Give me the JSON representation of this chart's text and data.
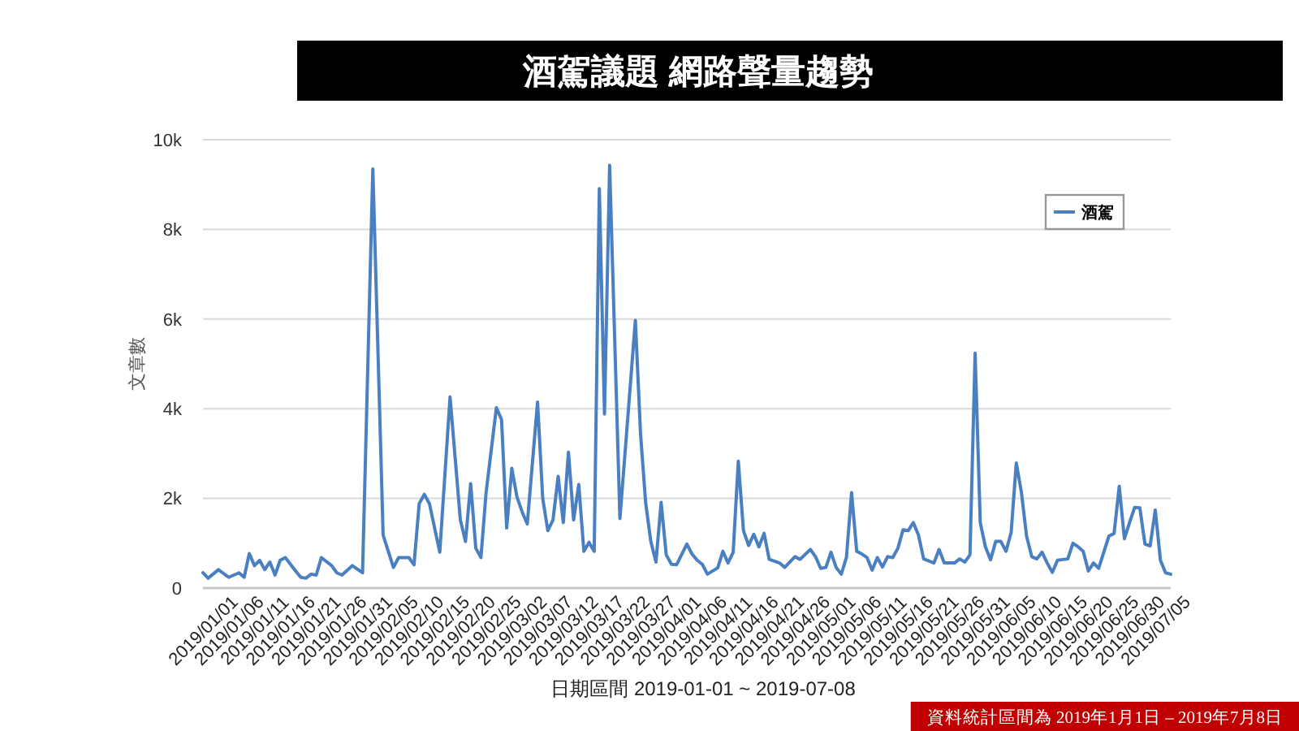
{
  "chart_data": {
    "type": "line",
    "title": "酒駕議題 網路聲量趨勢",
    "xlabel": "日期區間 2019-01-01 ~ 2019-07-08",
    "ylabel": "文章數",
    "annotations": [
      "資料統計區間為 2019年1月1日 – 2019年7月8日"
    ],
    "x": [
      "2019-01-01",
      "2019-01-02",
      "2019-01-04",
      "2019-01-06",
      "2019-01-08",
      "2019-01-09",
      "2019-01-10",
      "2019-01-11",
      "2019-01-12",
      "2019-01-13",
      "2019-01-14",
      "2019-01-15",
      "2019-01-16",
      "2019-01-17",
      "2019-01-19",
      "2019-01-20",
      "2019-01-21",
      "2019-01-22",
      "2019-01-23",
      "2019-01-24",
      "2019-01-26",
      "2019-01-27",
      "2019-01-28",
      "2019-01-30",
      "2019-02-01",
      "2019-02-03",
      "2019-02-05",
      "2019-02-07",
      "2019-02-08",
      "2019-02-10",
      "2019-02-11",
      "2019-02-12",
      "2019-02-13",
      "2019-02-14",
      "2019-02-16",
      "2019-02-18",
      "2019-02-20",
      "2019-02-21",
      "2019-02-22",
      "2019-02-23",
      "2019-02-24",
      "2019-02-25",
      "2019-02-27",
      "2019-02-28",
      "2019-03-01",
      "2019-03-02",
      "2019-03-03",
      "2019-03-04",
      "2019-03-05",
      "2019-03-07",
      "2019-03-08",
      "2019-03-09",
      "2019-03-10",
      "2019-03-11",
      "2019-03-12",
      "2019-03-13",
      "2019-03-14",
      "2019-03-15",
      "2019-03-16",
      "2019-03-17",
      "2019-03-18",
      "2019-03-19",
      "2019-03-20",
      "2019-03-21",
      "2019-03-23",
      "2019-03-26",
      "2019-03-27",
      "2019-03-28",
      "2019-03-29",
      "2019-03-30",
      "2019-03-31",
      "2019-04-01",
      "2019-04-02",
      "2019-04-03",
      "2019-04-05",
      "2019-04-06",
      "2019-04-07",
      "2019-04-08",
      "2019-04-09",
      "2019-04-11",
      "2019-04-12",
      "2019-04-13",
      "2019-04-14",
      "2019-04-15",
      "2019-04-16",
      "2019-04-17",
      "2019-04-18",
      "2019-04-19",
      "2019-04-20",
      "2019-04-21",
      "2019-04-23",
      "2019-04-24",
      "2019-04-26",
      "2019-04-27",
      "2019-04-29",
      "2019-04-30",
      "2019-05-01",
      "2019-05-02",
      "2019-05-03",
      "2019-05-04",
      "2019-05-05",
      "2019-05-06",
      "2019-05-07",
      "2019-05-08",
      "2019-05-09",
      "2019-05-10",
      "2019-05-11",
      "2019-05-12",
      "2019-05-13",
      "2019-05-14",
      "2019-05-15",
      "2019-05-16",
      "2019-05-17",
      "2019-05-18",
      "2019-05-19",
      "2019-05-20",
      "2019-05-21",
      "2019-05-23",
      "2019-05-24",
      "2019-05-25",
      "2019-05-27",
      "2019-05-28",
      "2019-05-29",
      "2019-05-30",
      "2019-05-31",
      "2019-06-01",
      "2019-06-02",
      "2019-06-03",
      "2019-06-04",
      "2019-06-05",
      "2019-06-06",
      "2019-06-07",
      "2019-06-08",
      "2019-06-09",
      "2019-06-10",
      "2019-06-11",
      "2019-06-12",
      "2019-06-13",
      "2019-06-14",
      "2019-06-15",
      "2019-06-16",
      "2019-06-18",
      "2019-06-19",
      "2019-06-20",
      "2019-06-21",
      "2019-06-22",
      "2019-06-23",
      "2019-06-24",
      "2019-06-25",
      "2019-06-26",
      "2019-06-27",
      "2019-06-28",
      "2019-06-29",
      "2019-06-30",
      "2019-07-01",
      "2019-07-02",
      "2019-07-03",
      "2019-07-04",
      "2019-07-05",
      "2019-07-06",
      "2019-07-07",
      "2019-07-08"
    ],
    "series": [
      {
        "name": "酒駕",
        "color": "#4a7fc1",
        "values": [
          340,
          220,
          410,
          240,
          340,
          240,
          770,
          500,
          620,
          410,
          580,
          290,
          620,
          680,
          380,
          240,
          220,
          310,
          290,
          680,
          500,
          340,
          290,
          500,
          340,
          9350,
          1180,
          460,
          680,
          680,
          520,
          1880,
          2090,
          1880,
          800,
          4260,
          1520,
          1040,
          2330,
          890,
          680,
          2130,
          4020,
          3760,
          1340,
          2670,
          2030,
          1700,
          1430,
          4150,
          2000,
          1280,
          1520,
          2490,
          1460,
          3030,
          1520,
          2310,
          820,
          1020,
          820,
          8910,
          3880,
          9430,
          1550,
          5970,
          3450,
          1900,
          1040,
          580,
          1910,
          740,
          530,
          520,
          980,
          760,
          620,
          530,
          310,
          450,
          820,
          560,
          800,
          2830,
          1280,
          950,
          1200,
          920,
          1220,
          640,
          560,
          460,
          700,
          640,
          860,
          700,
          440,
          460,
          800,
          460,
          310,
          680,
          2130,
          820,
          760,
          680,
          400,
          680,
          470,
          700,
          680,
          890,
          1300,
          1280,
          1460,
          1180,
          650,
          560,
          860,
          560,
          560,
          650,
          580,
          740,
          5240,
          1460,
          920,
          630,
          1040,
          1040,
          820,
          1240,
          2790,
          2130,
          1160,
          700,
          650,
          800,
          560,
          350,
          620,
          650,
          1000,
          920,
          820,
          380,
          560,
          440,
          800,
          1160,
          1220,
          2270,
          1100,
          1460,
          1800,
          1790,
          980,
          940,
          1740,
          620,
          340,
          310
        ]
      }
    ],
    "xlim": [
      "2019-01-01",
      "2019-07-08"
    ],
    "xticks": [
      {
        "value": "2019-01-01",
        "label": "2019/01/01"
      },
      {
        "value": "2019-01-06",
        "label": "2019/01/06"
      },
      {
        "value": "2019-01-11",
        "label": "2019/01/11"
      },
      {
        "value": "2019-01-16",
        "label": "2019/01/16"
      },
      {
        "value": "2019-01-21",
        "label": "2019/01/21"
      },
      {
        "value": "2019-01-26",
        "label": "2019/01/26"
      },
      {
        "value": "2019-01-31",
        "label": "2019/01/31"
      },
      {
        "value": "2019-02-05",
        "label": "2019/02/05"
      },
      {
        "value": "2019-02-10",
        "label": "2019/02/10"
      },
      {
        "value": "2019-02-15",
        "label": "2019/02/15"
      },
      {
        "value": "2019-02-20",
        "label": "2019/02/20"
      },
      {
        "value": "2019-02-25",
        "label": "2019/02/25"
      },
      {
        "value": "2019-03-02",
        "label": "2019/03/02"
      },
      {
        "value": "2019-03-07",
        "label": "2019/03/07"
      },
      {
        "value": "2019-03-12",
        "label": "2019/03/12"
      },
      {
        "value": "2019-03-17",
        "label": "2019/03/17"
      },
      {
        "value": "2019-03-22",
        "label": "2019/03/22"
      },
      {
        "value": "2019-03-27",
        "label": "2019/03/27"
      },
      {
        "value": "2019-04-01",
        "label": "2019/04/01"
      },
      {
        "value": "2019-04-06",
        "label": "2019/04/06"
      },
      {
        "value": "2019-04-11",
        "label": "2019/04/11"
      },
      {
        "value": "2019-04-16",
        "label": "2019/04/16"
      },
      {
        "value": "2019-04-21",
        "label": "2019/04/21"
      },
      {
        "value": "2019-04-26",
        "label": "2019/04/26"
      },
      {
        "value": "2019-05-01",
        "label": "2019/05/01"
      },
      {
        "value": "2019-05-06",
        "label": "2019/05/06"
      },
      {
        "value": "2019-05-11",
        "label": "2019/05/11"
      },
      {
        "value": "2019-05-16",
        "label": "2019/05/16"
      },
      {
        "value": "2019-05-21",
        "label": "2019/05/21"
      },
      {
        "value": "2019-05-26",
        "label": "2019/05/26"
      },
      {
        "value": "2019-05-31",
        "label": "2019/05/31"
      },
      {
        "value": "2019-06-05",
        "label": "2019/06/05"
      },
      {
        "value": "2019-06-10",
        "label": "2019/06/10"
      },
      {
        "value": "2019-06-15",
        "label": "2019/06/15"
      },
      {
        "value": "2019-06-20",
        "label": "2019/06/20"
      },
      {
        "value": "2019-06-25",
        "label": "2019/06/25"
      },
      {
        "value": "2019-06-30",
        "label": "2019/06/30"
      },
      {
        "value": "2019-07-05",
        "label": "2019/07/05"
      }
    ],
    "ylim": [
      0,
      10000
    ],
    "yticks": [
      0,
      {
        "value": 2000,
        "label": "2k"
      },
      {
        "value": 4000,
        "label": "4k"
      },
      {
        "value": 6000,
        "label": "6k"
      },
      {
        "value": 8000,
        "label": "8k"
      },
      {
        "value": 10000,
        "label": "10k"
      }
    ],
    "grid": "y",
    "legend": "top right",
    "line_style": "solid"
  }
}
